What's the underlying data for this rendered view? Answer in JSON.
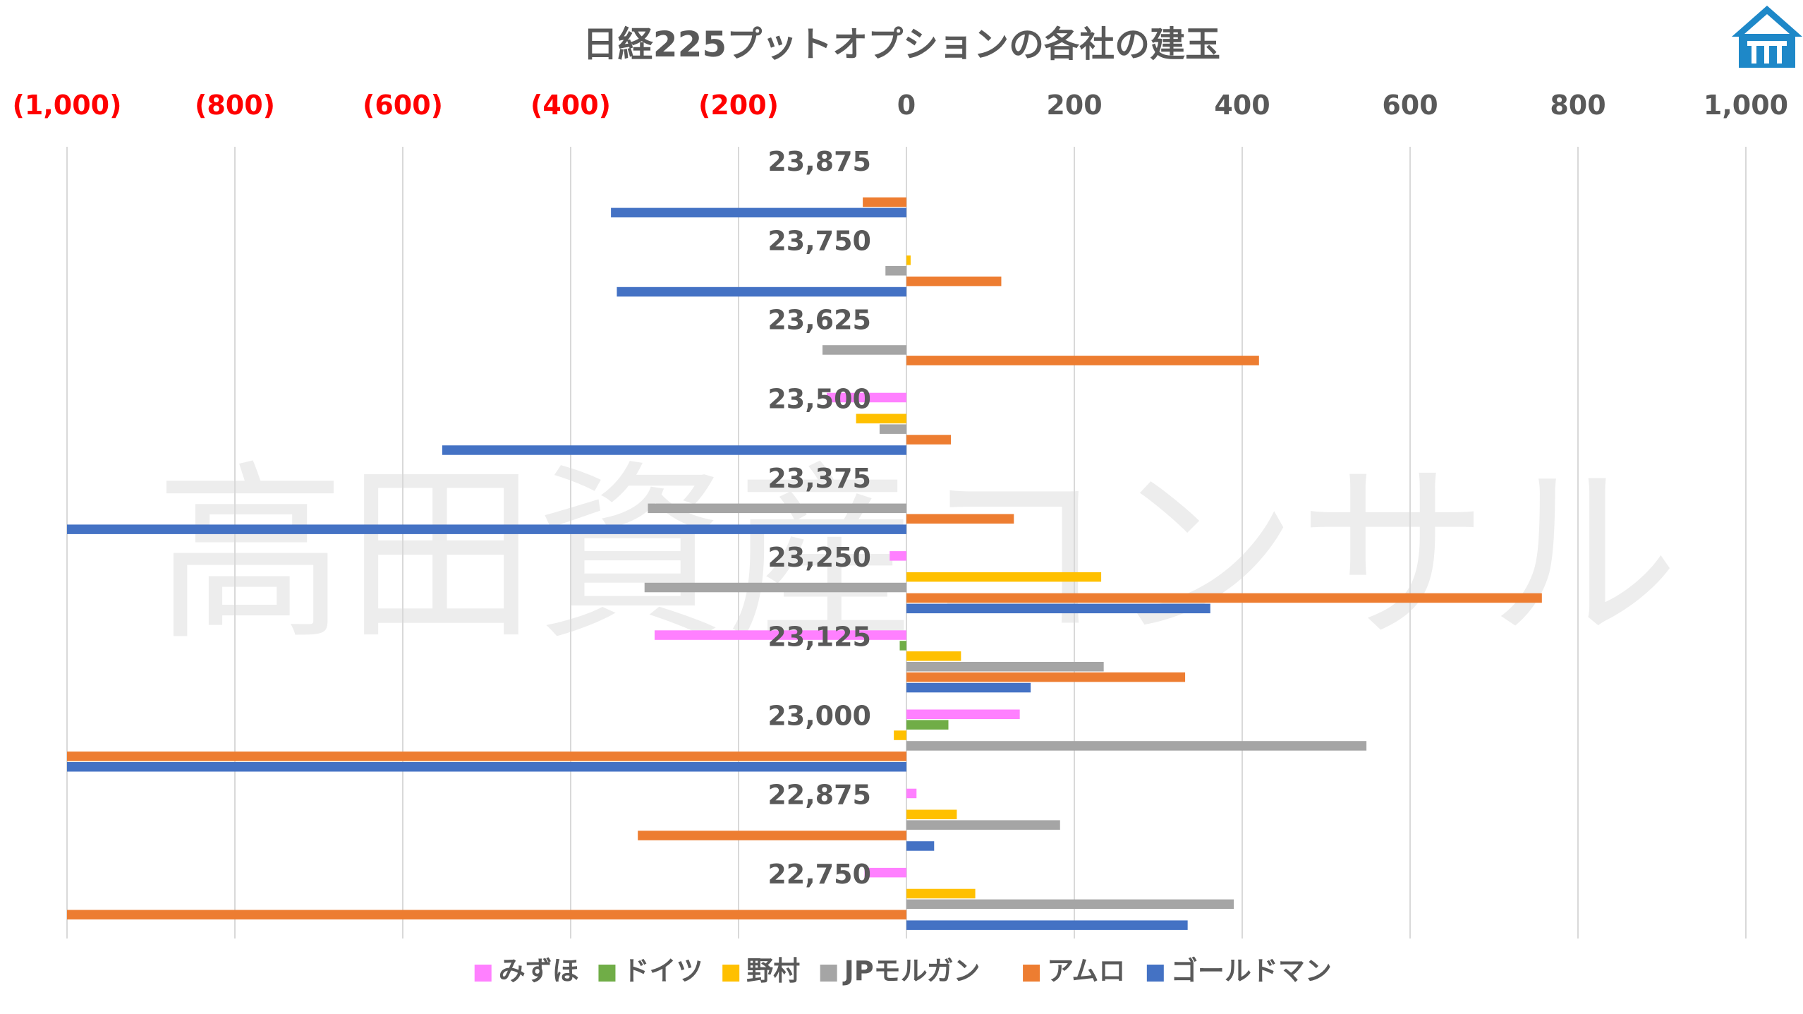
{
  "chart_data": {
    "type": "bar",
    "orientation": "horizontal",
    "title": "日経225プットオプションの各社の建玉",
    "xlim": [
      -1000,
      1000
    ],
    "x_ticks": [
      {
        "value": -1000,
        "label": "(1,000)"
      },
      {
        "value": -800,
        "label": "(800)"
      },
      {
        "value": -600,
        "label": "(600)"
      },
      {
        "value": -400,
        "label": "(400)"
      },
      {
        "value": -200,
        "label": "(200)"
      },
      {
        "value": 0,
        "label": "0"
      },
      {
        "value": 200,
        "label": "200"
      },
      {
        "value": 400,
        "label": "400"
      },
      {
        "value": 600,
        "label": "600"
      },
      {
        "value": 800,
        "label": "800"
      },
      {
        "value": 1000,
        "label": "1,000"
      }
    ],
    "negative_tick_color": "#ff0000",
    "positive_tick_color": "#595959",
    "grid": true,
    "legend_position": "bottom",
    "categories": [
      "23,875",
      "23,750",
      "23,625",
      "23,500",
      "23,375",
      "23,250",
      "23,125",
      "23,000",
      "22,875",
      "22,750"
    ],
    "series": [
      {
        "name": "みずほ",
        "color": "#ff80ff",
        "values": [
          0,
          0,
          0,
          -95,
          0,
          -20,
          -300,
          135,
          12,
          -50
        ]
      },
      {
        "name": "ドイツ",
        "color": "#70ad47",
        "values": [
          0,
          0,
          0,
          0,
          0,
          0,
          -8,
          50,
          0,
          0
        ]
      },
      {
        "name": "野村",
        "color": "#ffc000",
        "values": [
          0,
          5,
          0,
          -60,
          0,
          232,
          65,
          -15,
          60,
          82
        ]
      },
      {
        "name": "JPモルガン",
        "color": "#a5a5a5",
        "values": [
          0,
          -25,
          -100,
          -32,
          -308,
          -312,
          235,
          548,
          183,
          390
        ]
      },
      {
        "name": "アムロ",
        "color": "#ed7d31",
        "values": [
          -52,
          113,
          420,
          53,
          128,
          757,
          332,
          -1000,
          -320,
          -1000
        ]
      },
      {
        "name": "ゴールドマン",
        "color": "#4472c4",
        "values": [
          -352,
          -345,
          0,
          -553,
          -1000,
          362,
          148,
          -1000,
          33,
          335
        ]
      }
    ],
    "watermark": "高田資産コンサル"
  },
  "logo": {
    "icon": "house-logo-icon",
    "color": "#1e88c8"
  }
}
